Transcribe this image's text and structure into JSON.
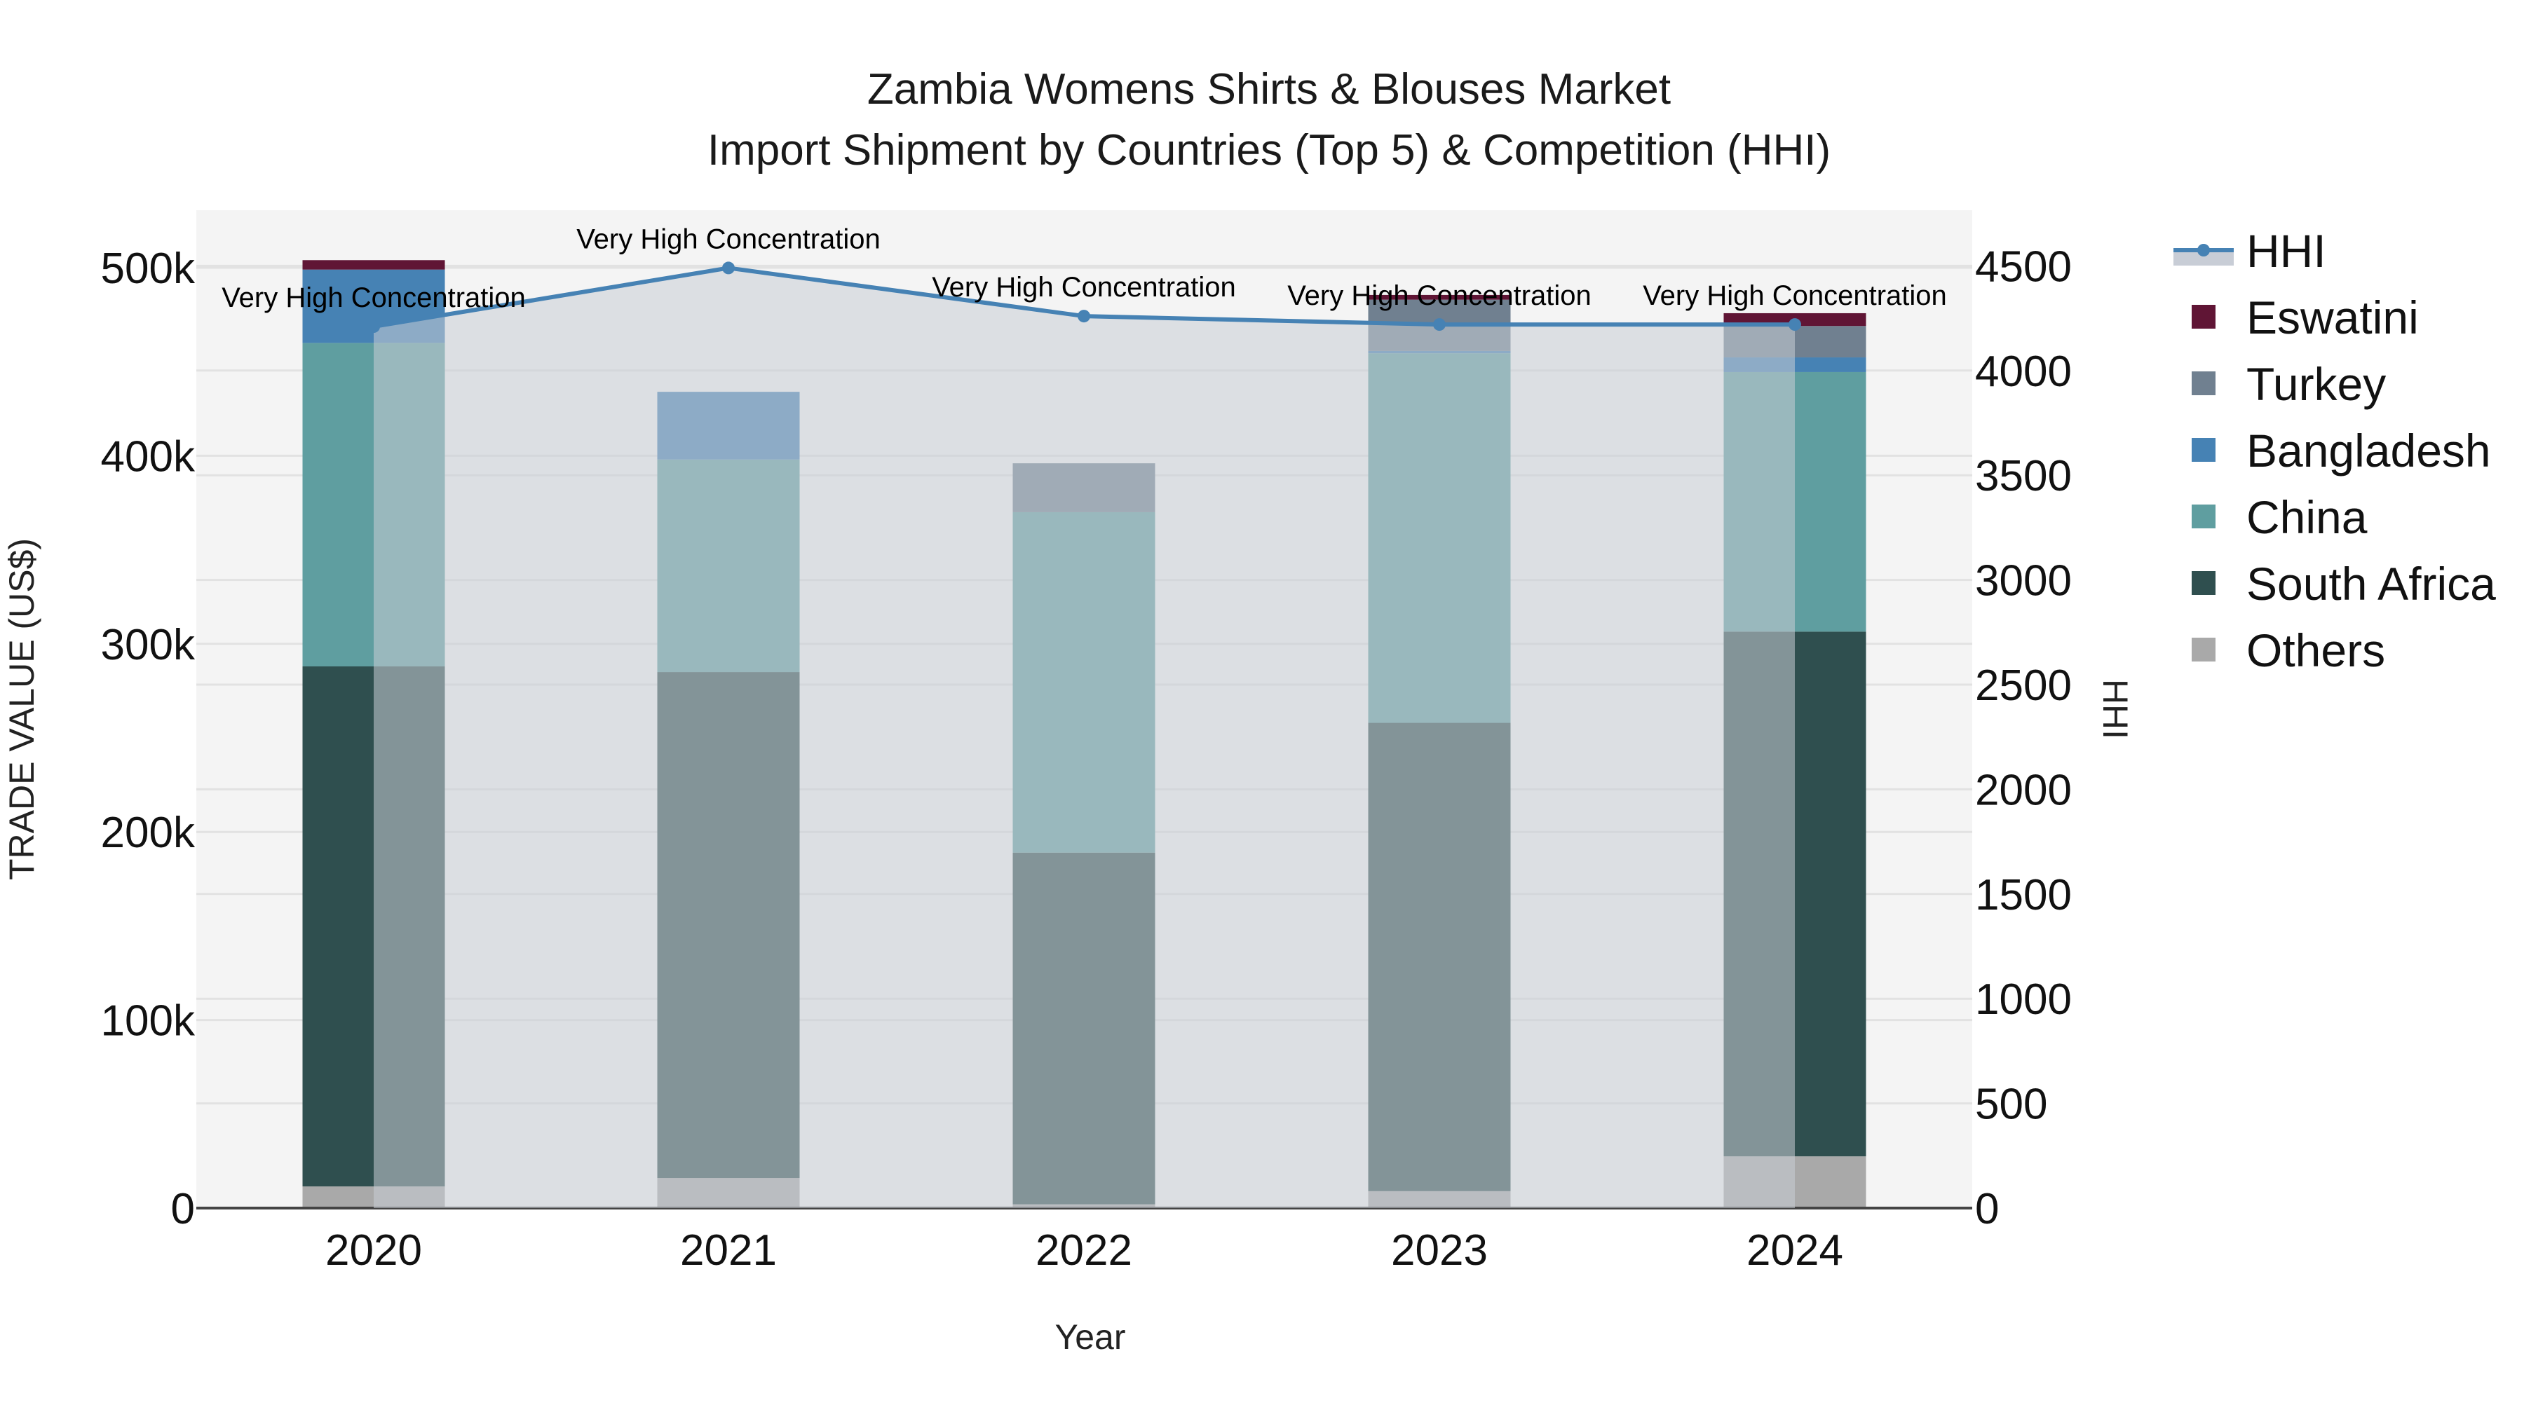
{
  "chart_data": {
    "type": "bar",
    "title": "Zambia Womens Shirts & Blouses Market",
    "subtitle": "Import Shipment by Countries (Top 5) & Competition (HHI)",
    "xlabel": "Year",
    "ylabel": "TRADE VALUE (US$)",
    "y2label": "HHI",
    "categories": [
      "2020",
      "2021",
      "2022",
      "2023",
      "2024"
    ],
    "stacked": true,
    "ylim": [
      0,
      530000
    ],
    "y2lim": [
      0,
      4775
    ],
    "yticks": [
      0,
      100000,
      200000,
      300000,
      400000,
      500000
    ],
    "ytick_labels": [
      "0",
      "100k",
      "200k",
      "300k",
      "400k",
      "500k"
    ],
    "y2ticks": [
      0,
      500,
      1000,
      1500,
      2000,
      2500,
      3000,
      3500,
      4000,
      4500
    ],
    "y2tick_labels": [
      "0",
      "500",
      "1000",
      "1500",
      "2000",
      "2500",
      "3000",
      "3500",
      "4000",
      "4500"
    ],
    "series": [
      {
        "name": "Others",
        "color": "#a9a9a9",
        "values": [
          11500,
          16000,
          2000,
          9000,
          27500
        ]
      },
      {
        "name": "South Africa",
        "color": "#2f4f4f",
        "values": [
          276500,
          269000,
          187000,
          249000,
          279000
        ]
      },
      {
        "name": "China",
        "color": "#5f9ea0",
        "values": [
          172000,
          113000,
          181000,
          196500,
          138000
        ]
      },
      {
        "name": "Bangladesh",
        "color": "#4682b4",
        "values": [
          39000,
          36000,
          0,
          1200,
          7800
        ]
      },
      {
        "name": "Turkey",
        "color": "#708090",
        "values": [
          0,
          0,
          26000,
          27300,
          16700
        ]
      },
      {
        "name": "Eswatini",
        "color": "#601535",
        "values": [
          5000,
          0,
          0,
          2500,
          6800
        ]
      }
    ],
    "line_series": {
      "name": "HHI",
      "axis": "y2",
      "color": "#4682b4",
      "fill_color": "#c8cdd6",
      "values": [
        4210,
        4490,
        4260,
        4220,
        4220
      ]
    },
    "annotations": [
      {
        "x": "2020",
        "text": "Very High Concentration"
      },
      {
        "x": "2021",
        "text": "Very High Concentration"
      },
      {
        "x": "2022",
        "text": "Very High Concentration"
      },
      {
        "x": "2023",
        "text": "Very High Concentration"
      },
      {
        "x": "2024",
        "text": "Very High Concentration"
      }
    ],
    "legend": {
      "position": "right",
      "entries": [
        "HHI",
        "Eswatini",
        "Turkey",
        "Bangladesh",
        "China",
        "South Africa",
        "Others"
      ]
    },
    "grid": true,
    "plot_bgcolor": "#f4f4f4"
  }
}
